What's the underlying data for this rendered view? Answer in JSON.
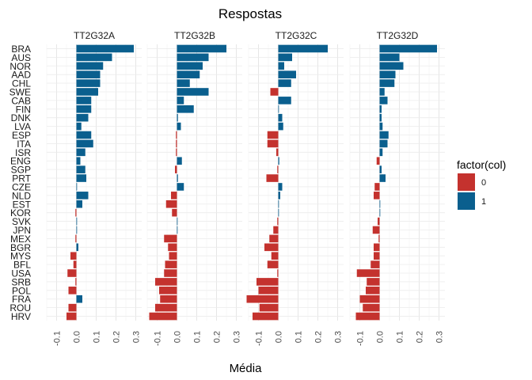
{
  "chart_data": {
    "type": "bar",
    "orientation": "horizontal",
    "title": "Respostas",
    "xlabel": "Média",
    "ylabel": "",
    "xlim": [
      -0.15,
      0.33
    ],
    "x_ticks": [
      -0.1,
      0.0,
      0.1,
      0.2,
      0.3
    ],
    "x_tick_labels": [
      "-0.1",
      "0.0",
      "0.1",
      "0.2",
      "0.3"
    ],
    "grid": true,
    "legend": {
      "title": "factor(col)",
      "position": "right",
      "entries": [
        {
          "label": "0",
          "color": "#c4322e"
        },
        {
          "label": "1",
          "color": "#0a5f8e"
        }
      ]
    },
    "colors": {
      "positive": "#0a5f8e",
      "negative": "#c4322e"
    },
    "categories": [
      "BRA",
      "AUS",
      "NOR",
      "AAD",
      "CHL",
      "SWE",
      "CAB",
      "FIN",
      "DNK",
      "LVA",
      "ESP",
      "ITA",
      "ISR",
      "ENG",
      "SGP",
      "PRT",
      "CZE",
      "NLD",
      "EST",
      "KOR",
      "SVK",
      "JPN",
      "MEX",
      "BGR",
      "MYS",
      "BFL",
      "USA",
      "SRB",
      "POL",
      "FRA",
      "ROU",
      "HRV"
    ],
    "facets": [
      {
        "name": "TT2G32A",
        "values": [
          0.29,
          0.18,
          0.135,
          0.12,
          0.12,
          0.11,
          0.075,
          0.075,
          0.06,
          0.025,
          0.075,
          0.085,
          0.045,
          0.02,
          0.045,
          0.05,
          0.0,
          0.06,
          0.03,
          -0.005,
          0.0,
          0.0,
          -0.005,
          0.01,
          -0.03,
          -0.015,
          -0.045,
          -0.005,
          -0.04,
          0.03,
          -0.04,
          -0.05
        ]
      },
      {
        "name": "TT2G32B",
        "values": [
          0.25,
          0.16,
          0.13,
          0.115,
          0.065,
          0.16,
          0.035,
          0.085,
          0.005,
          0.02,
          -0.005,
          -0.005,
          -0.005,
          0.025,
          -0.01,
          0.005,
          0.035,
          -0.03,
          -0.055,
          -0.025,
          0.0,
          0.0,
          -0.065,
          -0.045,
          -0.04,
          -0.06,
          -0.065,
          -0.11,
          -0.09,
          -0.085,
          -0.11,
          -0.14
        ]
      },
      {
        "name": "TT2G32C",
        "values": [
          0.25,
          0.07,
          0.03,
          0.09,
          0.065,
          -0.04,
          0.065,
          0.0,
          0.02,
          0.025,
          -0.055,
          -0.055,
          -0.01,
          0.005,
          -0.005,
          -0.06,
          0.02,
          0.01,
          0.0,
          0.0,
          -0.005,
          -0.025,
          -0.045,
          -0.07,
          -0.035,
          -0.055,
          -0.005,
          -0.11,
          -0.1,
          -0.16,
          -0.095,
          -0.13
        ]
      },
      {
        "name": "TT2G32D",
        "values": [
          0.29,
          0.1,
          0.12,
          0.08,
          0.075,
          0.025,
          0.04,
          0.01,
          0.01,
          0.015,
          0.045,
          0.04,
          0.015,
          -0.015,
          0.01,
          0.03,
          -0.025,
          -0.03,
          0.0,
          0.0,
          -0.01,
          -0.035,
          -0.005,
          -0.03,
          -0.03,
          -0.045,
          -0.115,
          -0.065,
          -0.07,
          -0.1,
          -0.085,
          -0.12
        ]
      }
    ]
  }
}
